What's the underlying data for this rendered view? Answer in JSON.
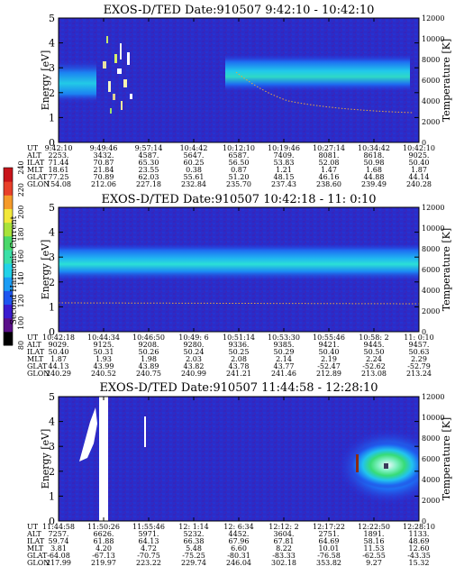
{
  "colorbar": {
    "label": "Second Harmonic Current",
    "ticks": [
      "240",
      "220",
      "200",
      "180",
      "160",
      "140",
      "120",
      "100",
      "80"
    ],
    "colors": [
      "#000000",
      "#5a0f8a",
      "#3a1bd0",
      "#1e55f0",
      "#1a9cf5",
      "#22d2e8",
      "#3be0a8",
      "#4ad86a",
      "#a8e23a",
      "#f2e83a",
      "#f59a2a",
      "#e8402a",
      "#c8141a"
    ]
  },
  "chart_data": [
    {
      "type": "heatmap",
      "title": "EXOS-D/TED   Date:910507  9:42:10 - 10:42:10",
      "ylabel": "Energy [eV]",
      "y2label": "Temperature [K]",
      "ylim": [
        0,
        5
      ],
      "y2lim": [
        0,
        12000
      ],
      "yticks": [
        "0",
        "1",
        "2",
        "3",
        "4",
        "5"
      ],
      "y2ticks": [
        "0",
        "2000",
        "4000",
        "6000",
        "8000",
        "10000",
        "12000"
      ],
      "orbit_rows": [
        {
          "label": "UT",
          "values": [
            "9:42:10",
            "9:49:46",
            "9:57:14",
            "10:4:42",
            "10:12:10",
            "10:19:46",
            "10:27:14",
            "10:34:42",
            "10:42:10"
          ]
        },
        {
          "label": "ALT",
          "values": [
            "2253.",
            "3432.",
            "4587.",
            "5647.",
            "6587.",
            "7409.",
            "8081.",
            "8618.",
            "9025."
          ]
        },
        {
          "label": "ILAT",
          "values": [
            "71.44",
            "70.87",
            "65.30",
            "60.25",
            "56.50",
            "53.83",
            "52.08",
            "50.98",
            "50.40"
          ]
        },
        {
          "label": "MLT",
          "values": [
            "18.61",
            "21.84",
            "23.55",
            "0.38",
            "0.87",
            "1.21",
            "1.47",
            "1.68",
            "1.87"
          ]
        },
        {
          "label": "GLAT",
          "values": [
            "77.25",
            "70.89",
            "62.03",
            "55.61",
            "51.20",
            "48.15",
            "46.16",
            "44.88",
            "44.14"
          ]
        },
        {
          "label": "GLON",
          "values": [
            "154.08",
            "212.06",
            "227.18",
            "232.84",
            "235.70",
            "237.43",
            "238.60",
            "239.49",
            "240.28"
          ]
        }
      ]
    },
    {
      "type": "heatmap",
      "title": "EXOS-D/TED   Date:910507  10:42:18 - 11: 0:10",
      "ylabel": "Energy [eV]",
      "y2label": "Temperature [K]",
      "ylim": [
        0,
        5
      ],
      "y2lim": [
        0,
        12000
      ],
      "yticks": [
        "0",
        "1",
        "2",
        "3",
        "4",
        "5"
      ],
      "y2ticks": [
        "0",
        "2000",
        "4000",
        "6000",
        "8000",
        "10000",
        "12000"
      ],
      "orbit_rows": [
        {
          "label": "UT",
          "values": [
            "10:42:18",
            "10:44:34",
            "10:46:50",
            "10:49: 6",
            "10:51:14",
            "10:53:30",
            "10:55:46",
            "10:58: 2",
            "11: 0:10"
          ]
        },
        {
          "label": "ALT",
          "values": [
            "9029.",
            "9125.",
            "9208.",
            "9280.",
            "9336.",
            "9385.",
            "9421.",
            "9445.",
            "9457."
          ]
        },
        {
          "label": "ILAT",
          "values": [
            "50.40",
            "50.31",
            "50.26",
            "50.24",
            "50.25",
            "50.29",
            "50.40",
            "50.50",
            "50.63"
          ]
        },
        {
          "label": "MLT",
          "values": [
            "1.87",
            "1.93",
            "1.98",
            "2.03",
            "2.08",
            "2.14",
            "2.19",
            "2.24",
            "2.29"
          ]
        },
        {
          "label": "GLAT",
          "values": [
            "44.13",
            "43.99",
            "43.89",
            "43.82",
            "43.78",
            "43.77",
            "-52.47",
            "-52.62",
            "-52.79"
          ]
        },
        {
          "label": "GLON",
          "values": [
            "240.29",
            "240.52",
            "240.75",
            "240.99",
            "241.21",
            "241.46",
            "212.89",
            "213.08",
            "213.24"
          ]
        }
      ]
    },
    {
      "type": "heatmap",
      "title": "EXOS-D/TED   Date:910507  11:44:58 - 12:28:10",
      "ylabel": "Energy [eV]",
      "y2label": "Temperature [K]",
      "ylim": [
        0,
        5
      ],
      "y2lim": [
        0,
        12000
      ],
      "yticks": [
        "0",
        "1",
        "2",
        "3",
        "4",
        "5"
      ],
      "y2ticks": [
        "0",
        "2000",
        "4000",
        "6000",
        "8000",
        "10000",
        "12000"
      ],
      "orbit_rows": [
        {
          "label": "UT",
          "values": [
            "11:44:58",
            "11:50:26",
            "11:55:46",
            "12: 1:14",
            "12: 6:34",
            "12:12: 2",
            "12:17:22",
            "12:22:50",
            "12:28:10"
          ]
        },
        {
          "label": "ALT",
          "values": [
            "7257.",
            "6626.",
            "5971.",
            "5232.",
            "4452.",
            "3604.",
            "2751.",
            "1891.",
            "1133."
          ]
        },
        {
          "label": "ILAT",
          "values": [
            "59.74",
            "61.88",
            "64.13",
            "66.38",
            "67.96",
            "67.81",
            "64.69",
            "58.16",
            "48.69"
          ]
        },
        {
          "label": "MLT",
          "values": [
            "3.81",
            "4.20",
            "4.72",
            "5.48",
            "6.60",
            "8.22",
            "10.01",
            "11.53",
            "12.60"
          ]
        },
        {
          "label": "GLAT",
          "values": [
            "-64.08",
            "-67.13",
            "-70.75",
            "-75.25",
            "-80.31",
            "-83.33",
            "-76.58",
            "-62.55",
            "-43.35"
          ]
        },
        {
          "label": "GLON",
          "values": [
            "217.99",
            "219.97",
            "223.22",
            "229.74",
            "246.04",
            "302.18",
            "353.82",
            "9.27",
            "15.32"
          ]
        }
      ]
    }
  ]
}
